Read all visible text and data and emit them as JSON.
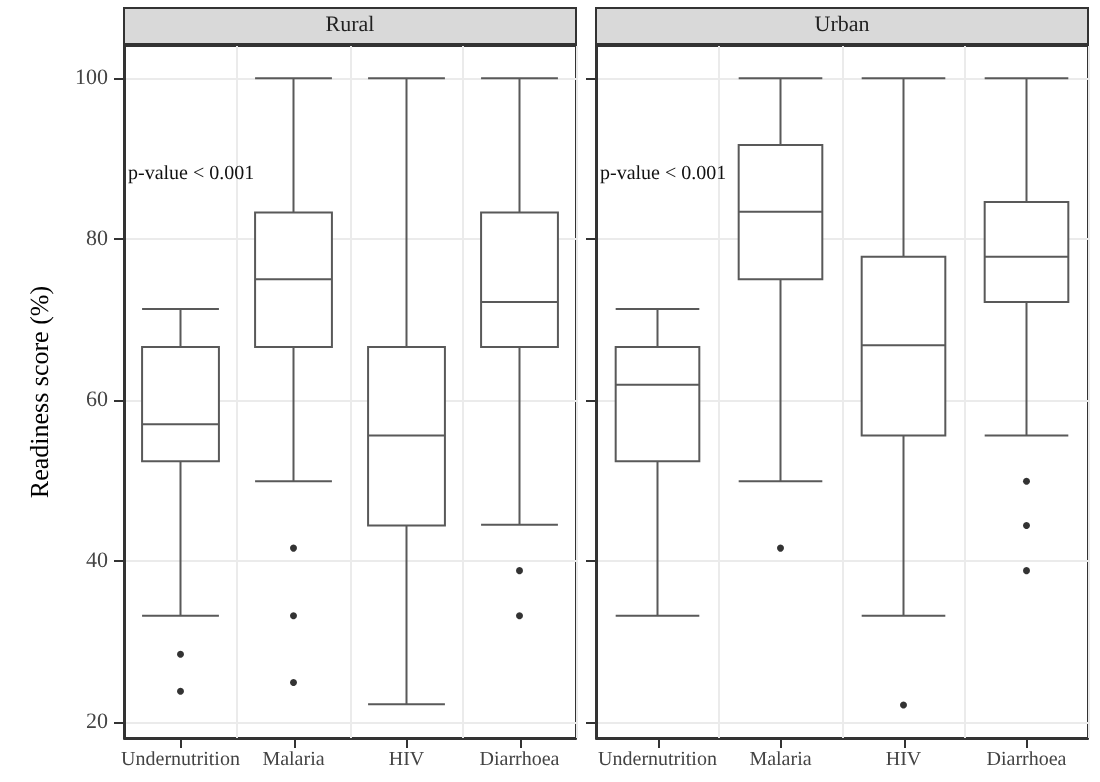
{
  "chart_data": [
    {
      "type": "box",
      "title": "Rural",
      "ylabel": "Readiness score (%)",
      "categories": [
        "Undernutrition",
        "Malaria",
        "HIV",
        "Diarrhoea"
      ],
      "ylim": [
        18,
        104
      ],
      "yticks": [
        20,
        40,
        60,
        80,
        100
      ],
      "grid": true,
      "color": "#595959",
      "annotations": [
        "p-value < 0.001"
      ],
      "boxes": [
        {
          "low": 33.2,
          "q1": 52.4,
          "median": 57,
          "q3": 66.6,
          "high": 71.3,
          "outliers": [
            28.4,
            23.8
          ]
        },
        {
          "low": 49.9,
          "q1": 66.6,
          "median": 75,
          "q3": 83.3,
          "high": 100,
          "outliers": [
            41.6,
            33.2,
            24.9
          ]
        },
        {
          "low": 22.2,
          "q1": 44.4,
          "median": 55.6,
          "q3": 66.6,
          "high": 100
        },
        {
          "low": 44.5,
          "q1": 66.6,
          "median": 72.2,
          "q3": 83.3,
          "high": 100,
          "outliers": [
            38.8,
            33.2
          ]
        }
      ]
    },
    {
      "type": "box",
      "title": "Urban",
      "categories": [
        "Undernutrition",
        "Malaria",
        "HIV",
        "Diarrhoea"
      ],
      "ylim": [
        18,
        104
      ],
      "yticks": [
        20,
        40,
        60,
        80,
        100
      ],
      "grid": true,
      "tick_labels": "x",
      "color": "#595959",
      "annotations": [
        "p-value < 0.001"
      ],
      "boxes": [
        {
          "low": 33.2,
          "q1": 52.4,
          "median": 61.9,
          "q3": 66.6,
          "high": 71.3
        },
        {
          "low": 49.9,
          "q1": 75,
          "median": 83.4,
          "q3": 91.7,
          "high": 100,
          "outliers": [
            41.6
          ]
        },
        {
          "low": 33.2,
          "q1": 55.6,
          "median": 66.8,
          "q3": 77.8,
          "high": 100,
          "outliers": [
            22.1
          ]
        },
        {
          "low": 55.6,
          "q1": 72.2,
          "median": 77.8,
          "q3": 84.6,
          "high": 100,
          "outliers": [
            49.9,
            44.4,
            38.8
          ]
        }
      ]
    }
  ]
}
